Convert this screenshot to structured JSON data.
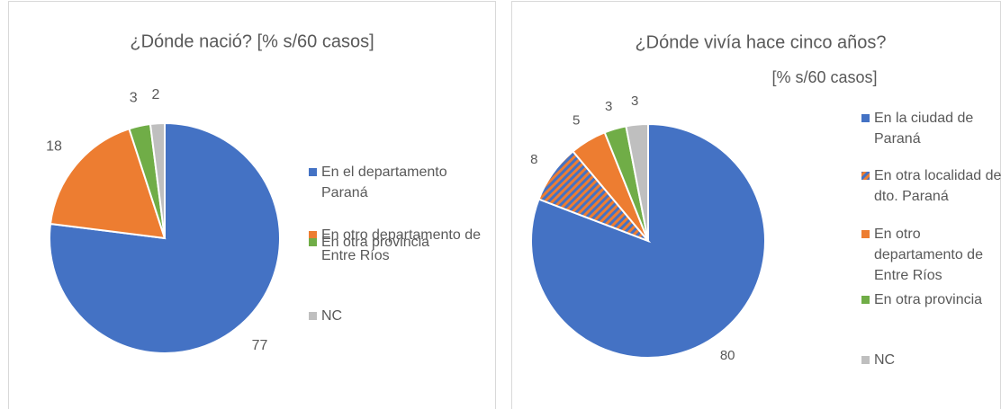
{
  "chart_data": [
    {
      "type": "pie",
      "title": "¿Dónde nació? [% s/60 casos]",
      "categories": [
        "En el departamento Paraná",
        "En otro departamento de Entre Ríos",
        "En otra provincia",
        "NC"
      ],
      "values": [
        77,
        18,
        3,
        2
      ],
      "colors": [
        "#4472c4",
        "#ed7d31",
        "#70ad47",
        "#bfbfbf"
      ],
      "legend": "right"
    },
    {
      "type": "pie",
      "title": "¿Dónde vivía hace cinco años?",
      "subtitle": "[% s/60 casos]",
      "categories": [
        "En la ciudad de Paraná",
        "En otra localidad del dto. Paraná",
        "En otro departamento de Entre Ríos",
        "En otra provincia",
        "NC"
      ],
      "values": [
        80,
        8,
        5,
        3,
        3
      ],
      "colors": [
        "#4472c4",
        "#ed7d31",
        "#ed7d31",
        "#70ad47",
        "#bfbfbf"
      ],
      "hatch": [
        null,
        "#4472c4",
        null,
        null,
        null
      ],
      "legend": "right"
    }
  ]
}
